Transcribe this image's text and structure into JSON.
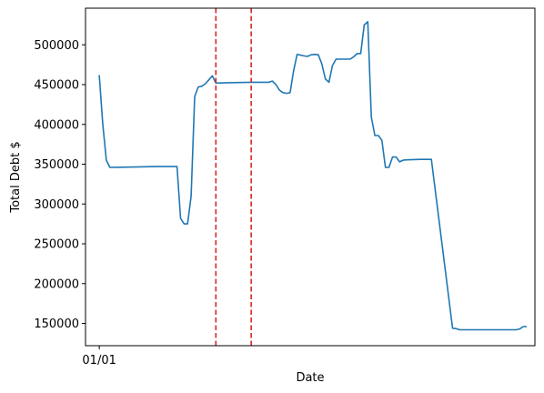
{
  "chart_data": {
    "type": "line",
    "title": "",
    "xlabel": "Date",
    "ylabel": "Total Debt $",
    "x_tick_labels": [
      "01/01"
    ],
    "y_ticks": [
      150000,
      200000,
      250000,
      300000,
      350000,
      400000,
      450000,
      500000
    ],
    "ylim": [
      122000,
      546000
    ],
    "xlim": [
      -3.9,
      123.3
    ],
    "grid": false,
    "series": [
      {
        "name": "",
        "color": "#1f77b4",
        "points": [
          [
            0,
            462000
          ],
          [
            1,
            400000
          ],
          [
            2,
            355000
          ],
          [
            3,
            346000
          ],
          [
            10,
            346500
          ],
          [
            16,
            347000
          ],
          [
            22,
            347000
          ],
          [
            23,
            282000
          ],
          [
            24,
            275000
          ],
          [
            25,
            275000
          ],
          [
            26,
            310000
          ],
          [
            27,
            435000
          ],
          [
            28,
            447000
          ],
          [
            29,
            448000
          ],
          [
            30,
            451000
          ],
          [
            31,
            456000
          ],
          [
            32,
            461000
          ],
          [
            33,
            452000
          ],
          [
            38,
            452500
          ],
          [
            43,
            453000
          ],
          [
            48,
            453000
          ],
          [
            49,
            454500
          ],
          [
            50,
            450000
          ],
          [
            51,
            443000
          ],
          [
            52,
            440000
          ],
          [
            53,
            439000
          ],
          [
            54,
            440000
          ],
          [
            55,
            467000
          ],
          [
            56,
            488000
          ],
          [
            58,
            486000
          ],
          [
            59,
            485500
          ],
          [
            60,
            487500
          ],
          [
            61,
            488000
          ],
          [
            62,
            487500
          ],
          [
            63,
            476000
          ],
          [
            64,
            457000
          ],
          [
            65,
            453000
          ],
          [
            66,
            474000
          ],
          [
            67,
            482000
          ],
          [
            71,
            482000
          ],
          [
            72,
            485000
          ],
          [
            73,
            489000
          ],
          [
            74,
            489000
          ],
          [
            75,
            525000
          ],
          [
            76,
            529000
          ],
          [
            77,
            409000
          ],
          [
            78,
            386000
          ],
          [
            79,
            386000
          ],
          [
            80,
            380000
          ],
          [
            81,
            346000
          ],
          [
            82,
            346000
          ],
          [
            83,
            359000
          ],
          [
            84,
            359000
          ],
          [
            85,
            353000
          ],
          [
            86,
            355000
          ],
          [
            87,
            355500
          ],
          [
            91,
            356000
          ],
          [
            94,
            356000
          ],
          [
            100,
            144000
          ],
          [
            101,
            143500
          ],
          [
            102,
            142000
          ],
          [
            106,
            142000
          ],
          [
            110,
            142000
          ],
          [
            118,
            142000
          ],
          [
            119,
            143000
          ],
          [
            120,
            146000
          ],
          [
            121,
            146000
          ]
        ]
      }
    ],
    "vlines": [
      {
        "x": 33,
        "color": "#d62728",
        "style": "dashed"
      },
      {
        "x": 43,
        "color": "#d62728",
        "style": "dashed"
      }
    ]
  }
}
